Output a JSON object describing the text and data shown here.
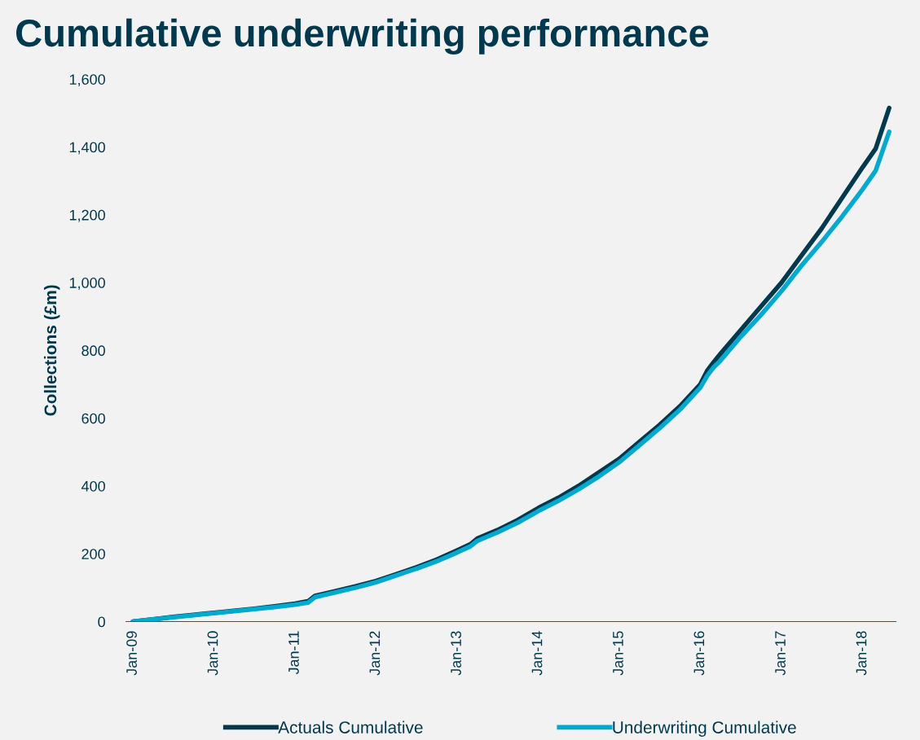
{
  "chart_data": {
    "type": "line",
    "title": "Cumulative underwriting performance",
    "ylabel": "Collections (£m)",
    "x": [
      "2009-01",
      "2009-04",
      "2009-07",
      "2009-10",
      "2010-01",
      "2010-04",
      "2010-07",
      "2010-10",
      "2011-01",
      "2011-03",
      "2011-04",
      "2011-07",
      "2011-10",
      "2012-01",
      "2012-04",
      "2012-07",
      "2012-10",
      "2013-01",
      "2013-03",
      "2013-04",
      "2013-07",
      "2013-10",
      "2014-01",
      "2014-04",
      "2014-07",
      "2014-10",
      "2015-01",
      "2015-04",
      "2015-07",
      "2015-10",
      "2016-01",
      "2016-02",
      "2016-03",
      "2016-04",
      "2016-07",
      "2016-10",
      "2017-01",
      "2017-04",
      "2017-07",
      "2017-10",
      "2018-01",
      "2018-03",
      "2018-05"
    ],
    "series": [
      {
        "name": "Actuals Cumulative",
        "color": "#00394d",
        "values": [
          0,
          7,
          14,
          20,
          26,
          32,
          38,
          45,
          53,
          60,
          76,
          90,
          104,
          120,
          140,
          160,
          183,
          210,
          228,
          245,
          270,
          300,
          335,
          365,
          400,
          440,
          480,
          530,
          580,
          635,
          700,
          740,
          765,
          790,
          860,
          930,
          1000,
          1080,
          1160,
          1250,
          1340,
          1395,
          1515
        ]
      },
      {
        "name": "Underwriting Cumulative",
        "color": "#00a9ce",
        "values": [
          0,
          7,
          13,
          19,
          25,
          31,
          37,
          43,
          50,
          56,
          72,
          86,
          100,
          116,
          136,
          156,
          178,
          204,
          222,
          238,
          263,
          292,
          326,
          356,
          390,
          428,
          470,
          520,
          570,
          625,
          690,
          725,
          750,
          770,
          840,
          905,
          975,
          1050,
          1120,
          1195,
          1275,
          1330,
          1445
        ]
      }
    ],
    "xlim": [
      "2008-12",
      "2018-06"
    ],
    "xticks": [
      {
        "value": "2009-01",
        "label": "Jan-09"
      },
      {
        "value": "2010-01",
        "label": "Jan-10"
      },
      {
        "value": "2011-01",
        "label": "Jan-11"
      },
      {
        "value": "2012-01",
        "label": "Jan-12"
      },
      {
        "value": "2013-01",
        "label": "Jan-13"
      },
      {
        "value": "2014-01",
        "label": "Jan-14"
      },
      {
        "value": "2015-01",
        "label": "Jan-15"
      },
      {
        "value": "2016-01",
        "label": "Jan-16"
      },
      {
        "value": "2017-01",
        "label": "Jan-17"
      },
      {
        "value": "2018-01",
        "label": "Jan-18"
      }
    ],
    "ylim": [
      0,
      1600
    ],
    "yticks": [
      0,
      200,
      400,
      600,
      800,
      {
        "value": 1000,
        "label": "1,000"
      },
      {
        "value": 1200,
        "label": "1,200"
      },
      {
        "value": 1400,
        "label": "1,400"
      },
      {
        "value": 1600,
        "label": "1,600"
      }
    ],
    "grid": false,
    "legend": "bottom",
    "marker": "none",
    "line_style": "solid"
  }
}
